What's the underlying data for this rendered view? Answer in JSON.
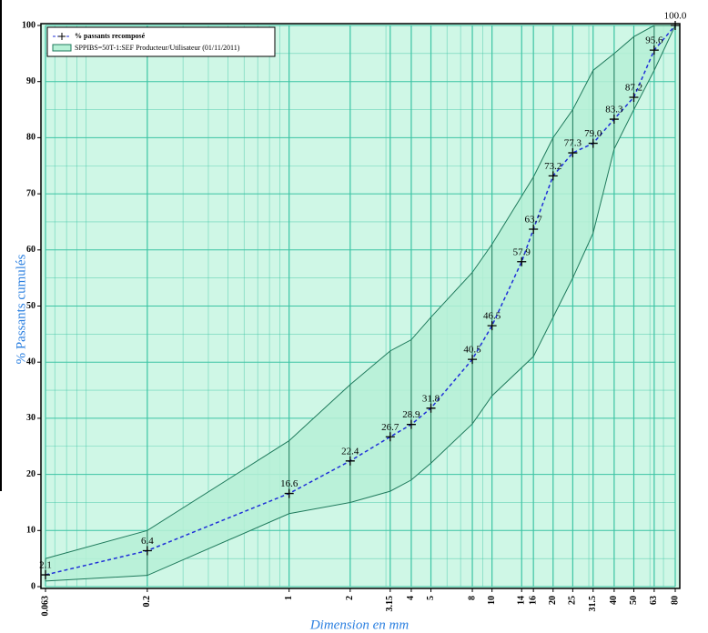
{
  "chart_data": {
    "type": "line",
    "log_x": true,
    "grid": true,
    "minor_grid": true,
    "background": "#cff7e6",
    "grid_color": "#3cc4a4",
    "xlabel": "Dimension en mm",
    "ylabel": "% Passants cumulés",
    "xlim": [
      0.063,
      80
    ],
    "ylim": [
      0,
      100
    ],
    "xticks": [
      0.063,
      0.2,
      1,
      2,
      3.15,
      4,
      5,
      8,
      10,
      14,
      16,
      20,
      25,
      31.5,
      40,
      50,
      63,
      80
    ],
    "yticks": [
      0,
      10,
      20,
      30,
      40,
      50,
      60,
      70,
      80,
      90,
      100
    ],
    "x": [
      0.063,
      0.2,
      1,
      2,
      3.15,
      4,
      5,
      8,
      10,
      14,
      16,
      20,
      25,
      31.5,
      40,
      50,
      63,
      80
    ],
    "series": [
      {
        "name": "% passants recomposé",
        "color": "#1f2fd8",
        "values": [
          2.1,
          6.4,
          16.6,
          22.4,
          26.7,
          28.9,
          31.8,
          40.5,
          46.5,
          57.9,
          63.7,
          73.2,
          77.3,
          79.0,
          83.3,
          87.2,
          95.6,
          100.0
        ],
        "value_labels": [
          "2.1",
          "6.4",
          "16.6",
          "22.4",
          "26.7",
          "28.9",
          "31.8",
          "40.5",
          "46.5",
          "57.9",
          "63.7",
          "73.2",
          "77.3",
          "79.0",
          "83.3",
          "87.2",
          "95.6",
          "100.0"
        ]
      }
    ],
    "envelope": {
      "name": "SPPIBS=50T-1:SEF Producteur/Utilisateur (01/11/2011)",
      "fill": "#b6f0d6",
      "color": "#1f7a5c",
      "x": [
        0.063,
        0.2,
        1,
        2,
        3.15,
        4,
        5,
        8,
        10,
        16,
        20,
        25,
        31.5,
        40,
        50,
        63,
        80
      ],
      "upper": [
        5,
        10,
        26,
        36,
        42,
        44,
        48,
        56,
        61,
        73,
        80,
        85,
        92,
        95,
        98,
        100,
        100
      ],
      "lower": [
        1,
        2,
        13,
        15,
        17,
        19,
        22,
        29,
        34,
        41,
        48,
        55,
        63,
        78,
        85,
        92,
        100
      ]
    }
  }
}
